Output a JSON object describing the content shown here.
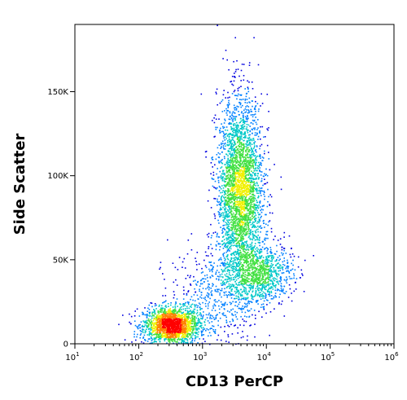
{
  "chart_data": {
    "type": "scatter",
    "title": "",
    "xlabel": "CD13 PerCP",
    "ylabel": "Side Scatter",
    "x_scale": "log",
    "xlim": [
      10,
      1000000
    ],
    "ylim": [
      0,
      190000
    ],
    "x_ticks": [
      {
        "value": 10,
        "base": "10",
        "exp": "1"
      },
      {
        "value": 100,
        "base": "10",
        "exp": "2"
      },
      {
        "value": 1000,
        "base": "10",
        "exp": "3"
      },
      {
        "value": 10000,
        "base": "10",
        "exp": "4"
      },
      {
        "value": 100000,
        "base": "10",
        "exp": "5"
      },
      {
        "value": 1000000,
        "base": "10",
        "exp": "6"
      }
    ],
    "y_ticks": [
      {
        "value": 0,
        "label": "0"
      },
      {
        "value": 50000,
        "label": "50K"
      },
      {
        "value": 100000,
        "label": "100K"
      },
      {
        "value": 150000,
        "label": "150K"
      }
    ],
    "grid": false,
    "colormap": [
      "#0000e0",
      "#0080ff",
      "#00c8c8",
      "#40e040",
      "#f0f000",
      "#ff8000",
      "#ff0000"
    ],
    "populations": [
      {
        "x_center": 320,
        "y_center": 11000,
        "x_spread_decades": 0.22,
        "y_spread": 5500,
        "count": 1800
      },
      {
        "x_center": 3800,
        "y_center": 90000,
        "x_spread_decades": 0.18,
        "y_spread": 28000,
        "count": 3200
      },
      {
        "x_center": 8000,
        "y_center": 42000,
        "x_spread_decades": 0.25,
        "y_spread": 9000,
        "count": 900
      },
      {
        "x_center": 1500,
        "y_center": 30000,
        "x_spread_decades": 0.35,
        "y_spread": 14000,
        "count": 500
      }
    ]
  }
}
